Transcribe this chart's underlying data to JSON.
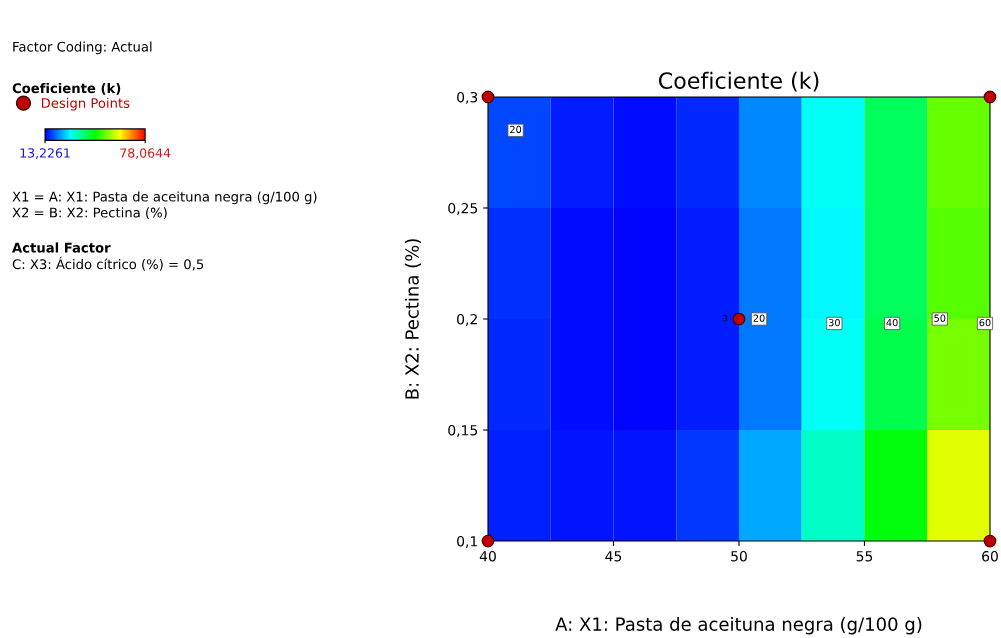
{
  "chart_data": {
    "type": "heatmap",
    "title": "Coeficiente (k)",
    "xlabel": "A: X1: Pasta de aceituna negra (g/100 g)",
    "ylabel": "B: X2: Pectina (%)",
    "legend_title": "Coeficiente (k)",
    "x": [
      41.25,
      43.75,
      46.25,
      48.75,
      51.25,
      53.75,
      56.25,
      58.75
    ],
    "y": [
      0.275,
      0.225,
      0.175,
      0.125
    ],
    "cells": [
      [
        18,
        15,
        14,
        16,
        22,
        30,
        40,
        52
      ],
      [
        16.5,
        14,
        13.5,
        15,
        21,
        29,
        40,
        51
      ],
      [
        16,
        14,
        13.5,
        15,
        21,
        30,
        41,
        53
      ],
      [
        15.5,
        14.5,
        14.5,
        17,
        24,
        33,
        45,
        60
      ]
    ],
    "colors": [
      "#0000ff",
      "#00ffff",
      "#00ff00",
      "#ffff00",
      "#ff0000"
    ],
    "clim": [
      13.2261,
      78.0644
    ],
    "cticks": [
      {
        "value": 13.2261,
        "label": "13,2261"
      },
      {
        "value": 78.0644,
        "label": "78,0644"
      }
    ],
    "xlim": [
      40,
      60
    ],
    "xticks": [
      40,
      45,
      50,
      55,
      60
    ],
    "ylim": [
      0.1,
      0.3
    ],
    "yticks": [
      {
        "value": 0.1,
        "label": "0,1"
      },
      {
        "value": 0.15,
        "label": "0,15"
      },
      {
        "value": 0.2,
        "label": "0,2"
      },
      {
        "value": 0.25,
        "label": "0,25"
      },
      {
        "value": 0.3,
        "label": "0,3"
      }
    ],
    "series": [
      {
        "type": "scatter",
        "name": "Design Points",
        "color": "#c00000",
        "x": [
          40,
          40,
          60,
          60,
          50
        ],
        "values": [
          0.1,
          0.3,
          0.1,
          0.3,
          0.2
        ]
      }
    ],
    "marker": "circle",
    "legend": "left",
    "grid": false,
    "annotations": [
      "Factor Coding: Actual",
      "X1 = A: X1: Pasta de aceituna negra (g/100 g)",
      "X2 = B: X2: Pectina (%)",
      "Actual Factor",
      "C: X3: Ácido cítrico (%) = 0,5",
      "3",
      "20",
      "20",
      "30",
      "40",
      "50",
      "60"
    ]
  }
}
